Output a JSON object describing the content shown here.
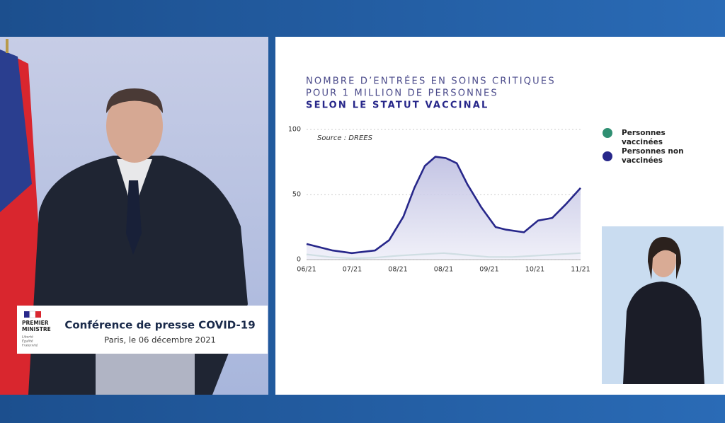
{
  "chart_data": {
    "type": "line",
    "title": [
      "NOMBRE D’ENTRÉES EN SOINS CRITIQUES",
      "POUR 1 MILLION DE PERSONNES",
      "SELON LE STATUT VACCINAL"
    ],
    "annotation": "Source : DREES",
    "xlim": [
      0,
      6
    ],
    "xticks": [
      {
        "value": 0,
        "label": "06/21"
      },
      {
        "value": 1,
        "label": "07/21"
      },
      {
        "value": 2,
        "label": "08/21"
      },
      {
        "value": 3,
        "label": "08/21"
      },
      {
        "value": 4,
        "label": "09/21"
      },
      {
        "value": 5,
        "label": "10/21"
      },
      {
        "value": 6,
        "label": "11/21"
      }
    ],
    "ylim": [
      0,
      100
    ],
    "yticks": [
      0,
      50,
      100
    ],
    "grid": true,
    "series": [
      {
        "name": "Personnes vaccinées",
        "color": "#2f8f72",
        "x": [
          0,
          0.5,
          1,
          1.5,
          2,
          2.5,
          3,
          3.5,
          4,
          4.5,
          5,
          5.5,
          6
        ],
        "values": [
          4,
          2,
          1,
          1.5,
          3,
          4,
          5,
          3.5,
          2,
          2,
          3,
          4,
          5
        ]
      },
      {
        "name": "Personnes non vaccinées",
        "color": "#27278a",
        "x": [
          0,
          0.57,
          0.99,
          1.5,
          1.81,
          2.12,
          2.36,
          2.59,
          2.82,
          3.05,
          3.29,
          3.52,
          3.83,
          4.14,
          4.37,
          4.76,
          5.07,
          5.38,
          5.69,
          6
        ],
        "values": [
          12,
          7,
          5,
          7,
          15,
          33,
          55,
          72,
          79,
          78,
          74,
          58,
          40,
          25,
          23,
          21,
          30,
          32,
          43,
          55
        ]
      }
    ],
    "legend": "right"
  },
  "lower_third": {
    "logo": [
      "PREMIER",
      "MINISTRE"
    ],
    "motto": [
      "Liberté",
      "Égalité",
      "Fraternité"
    ],
    "title": "Conférence de presse COVID-19",
    "subtitle": "Paris, le 06 décembre 2021"
  }
}
